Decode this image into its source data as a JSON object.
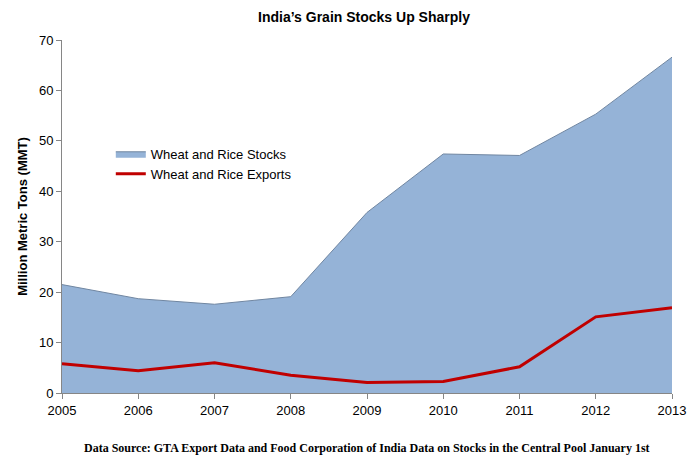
{
  "chart_data": {
    "type": "area",
    "title": "India’s Grain Stocks Up Sharply",
    "y_label": "Million Metric Tons (MMT)",
    "annotations": [
      "Data Source: GTA Export Data and Food Corporation of India Data on Stocks in the Central Pool January 1st"
    ],
    "x": [
      2005,
      2006,
      2007,
      2008,
      2009,
      2010,
      2011,
      2012,
      2013
    ],
    "series": [
      {
        "name": "Wheat and Rice Stocks",
        "type": "area",
        "color": "#95b3d7",
        "values": [
          21.5,
          18.7,
          17.6,
          19.1,
          35.8,
          47.4,
          47.1,
          55.3,
          66.6
        ]
      },
      {
        "name": "Wheat and Rice Exports",
        "type": "line",
        "color": "#c00000",
        "values": [
          5.8,
          4.4,
          6.0,
          3.5,
          2.1,
          2.3,
          5.2,
          15.1,
          16.9
        ]
      }
    ],
    "xlim": [
      2005,
      2013
    ],
    "xticks": [
      2005,
      2006,
      2007,
      2008,
      2009,
      2010,
      2011,
      2012,
      2013
    ],
    "ylim": [
      0,
      70
    ],
    "yticks": [
      0,
      10,
      20,
      30,
      40,
      50,
      60,
      70
    ],
    "grid": false,
    "legend": "upper left"
  }
}
